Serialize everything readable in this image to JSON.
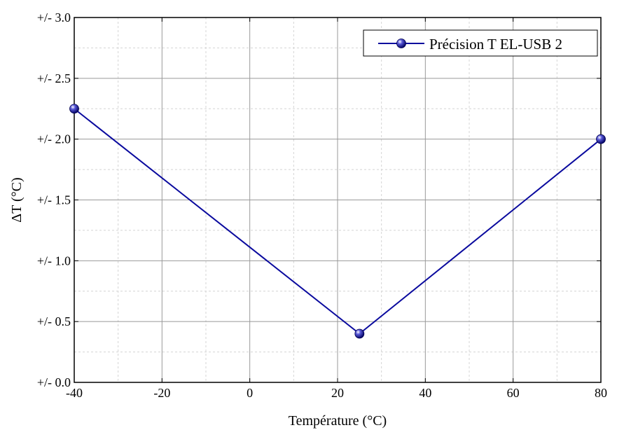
{
  "chart_data": {
    "type": "line",
    "title": "",
    "xlabel": "Température (°C)",
    "ylabel": "ΔT (°C)",
    "xlim": [
      -40,
      80
    ],
    "ylim": [
      0,
      3
    ],
    "x_ticks": [
      -40,
      -20,
      0,
      20,
      40,
      60,
      80
    ],
    "x_tick_labels": [
      "-40",
      "-20",
      "0",
      "20",
      "40",
      "60",
      "80"
    ],
    "y_ticks": [
      0,
      0.5,
      1,
      1.5,
      2,
      2.5,
      3
    ],
    "y_tick_labels": [
      "+/- 0.0",
      "+/- 0.5",
      "+/- 1.0",
      "+/- 1.5",
      "+/- 2.0",
      "+/- 2.5",
      "+/- 3.0"
    ],
    "grid": true,
    "legend_position": "top-right",
    "series": [
      {
        "name": "Précision T EL-USB 2",
        "color": "#0a0a9e",
        "x": [
          -40,
          25,
          80
        ],
        "y": [
          2.25,
          0.4,
          2.0
        ]
      }
    ]
  }
}
